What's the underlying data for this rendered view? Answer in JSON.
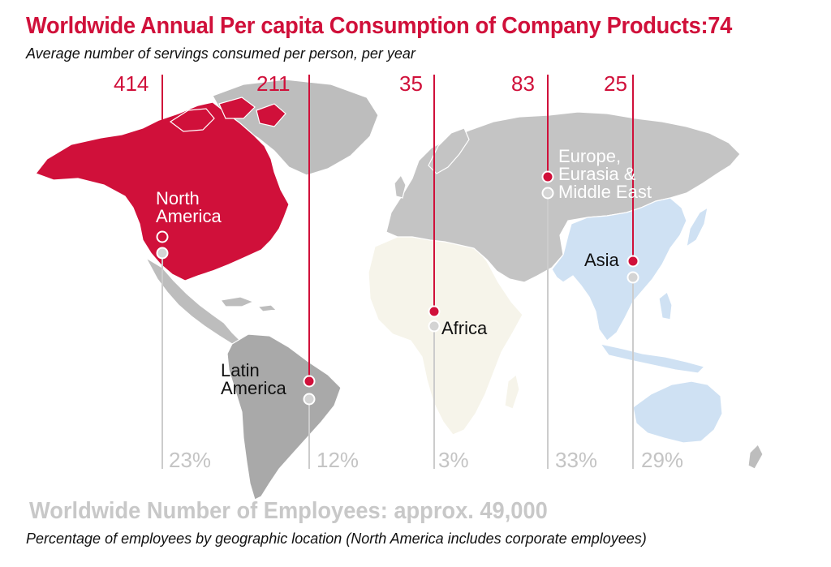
{
  "title": "Worldwide Annual Per capita Consumption of Company Products:74",
  "subtitle": "Average number of servings consumed per person, per year",
  "employees_title": "Worldwide Number of Employees: approx. 49,000",
  "employees_subtitle": "Percentage of employees by geographic location (North America includes corporate employees)",
  "colors": {
    "accent": "#d0103a",
    "land_gray": "#bdbdbd",
    "north_america": "#d0103a",
    "latin_america": "#a9a9a9",
    "africa": "#f6f4ea",
    "asia": "#cfe1f3",
    "europe_eurasia_me": "#c4c4c4",
    "employee_line": "#cccccc"
  },
  "regions": [
    {
      "name_lines": [
        "North",
        "America"
      ],
      "consumption": "414",
      "employees_pct": "23%"
    },
    {
      "name_lines": [
        "Latin",
        "America"
      ],
      "consumption": "211",
      "employees_pct": "12%"
    },
    {
      "name_lines": [
        "Africa"
      ],
      "consumption": "35",
      "employees_pct": "3%"
    },
    {
      "name_lines": [
        "Europe,",
        "Eurasia &",
        "Middle East"
      ],
      "consumption": "83",
      "employees_pct": "33%"
    },
    {
      "name_lines": [
        "Asia"
      ],
      "consumption": "25",
      "employees_pct": "29%"
    }
  ]
}
